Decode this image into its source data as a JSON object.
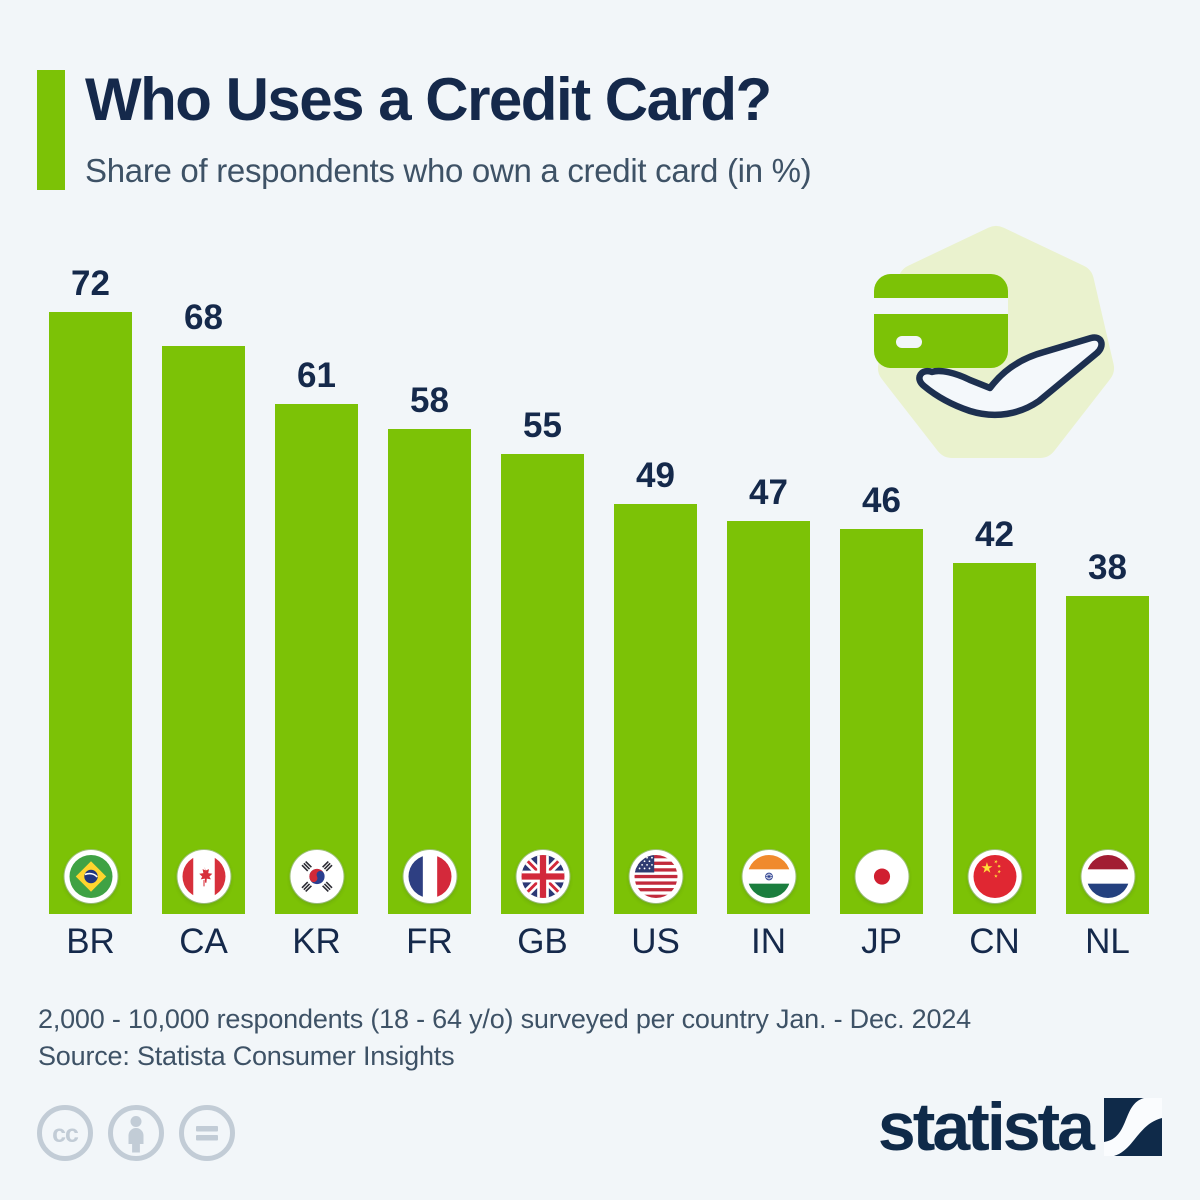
{
  "page": {
    "background": "#F2F6F9",
    "accent_green": "#7CC206",
    "navy": "#15294B",
    "blob_color": "#EAF2CE"
  },
  "header": {
    "title": "Who Uses a Credit Card?",
    "subtitle": "Share of respondents who own a credit card (in %)"
  },
  "illustration": {
    "name": "credit-card-in-hand",
    "card_color": "#7CC206",
    "blob_color": "#EAF2CE"
  },
  "chart_data": {
    "type": "bar",
    "title": "Who Uses a Credit Card?",
    "ylabel": "Share of respondents who own a credit card (%)",
    "categories": [
      "BR",
      "CA",
      "KR",
      "FR",
      "GB",
      "US",
      "IN",
      "JP",
      "CN",
      "NL"
    ],
    "values": [
      72,
      68,
      61,
      58,
      55,
      49,
      47,
      46,
      42,
      38
    ],
    "unit": "%",
    "ylim": [
      0,
      72
    ],
    "grid": false,
    "legend": "none",
    "bar_color": "#7CC206",
    "value_labels_shown": true,
    "flag_icons": [
      "flag-br-icon",
      "flag-ca-icon",
      "flag-kr-icon",
      "flag-fr-icon",
      "flag-gb-icon",
      "flag-us-icon",
      "flag-in-icon",
      "flag-jp-icon",
      "flag-cn-icon",
      "flag-nl-icon"
    ]
  },
  "footer": {
    "note": "2,000 - 10,000 respondents (18 - 64 y/o) surveyed per country Jan. - Dec. 2024",
    "source": "Source: Statista Consumer Insights"
  },
  "branding": {
    "cc_text": "cc",
    "license_icons": [
      "cc-icon",
      "attribution-person-icon",
      "no-derivatives-icon"
    ],
    "logo_text": "statista"
  }
}
